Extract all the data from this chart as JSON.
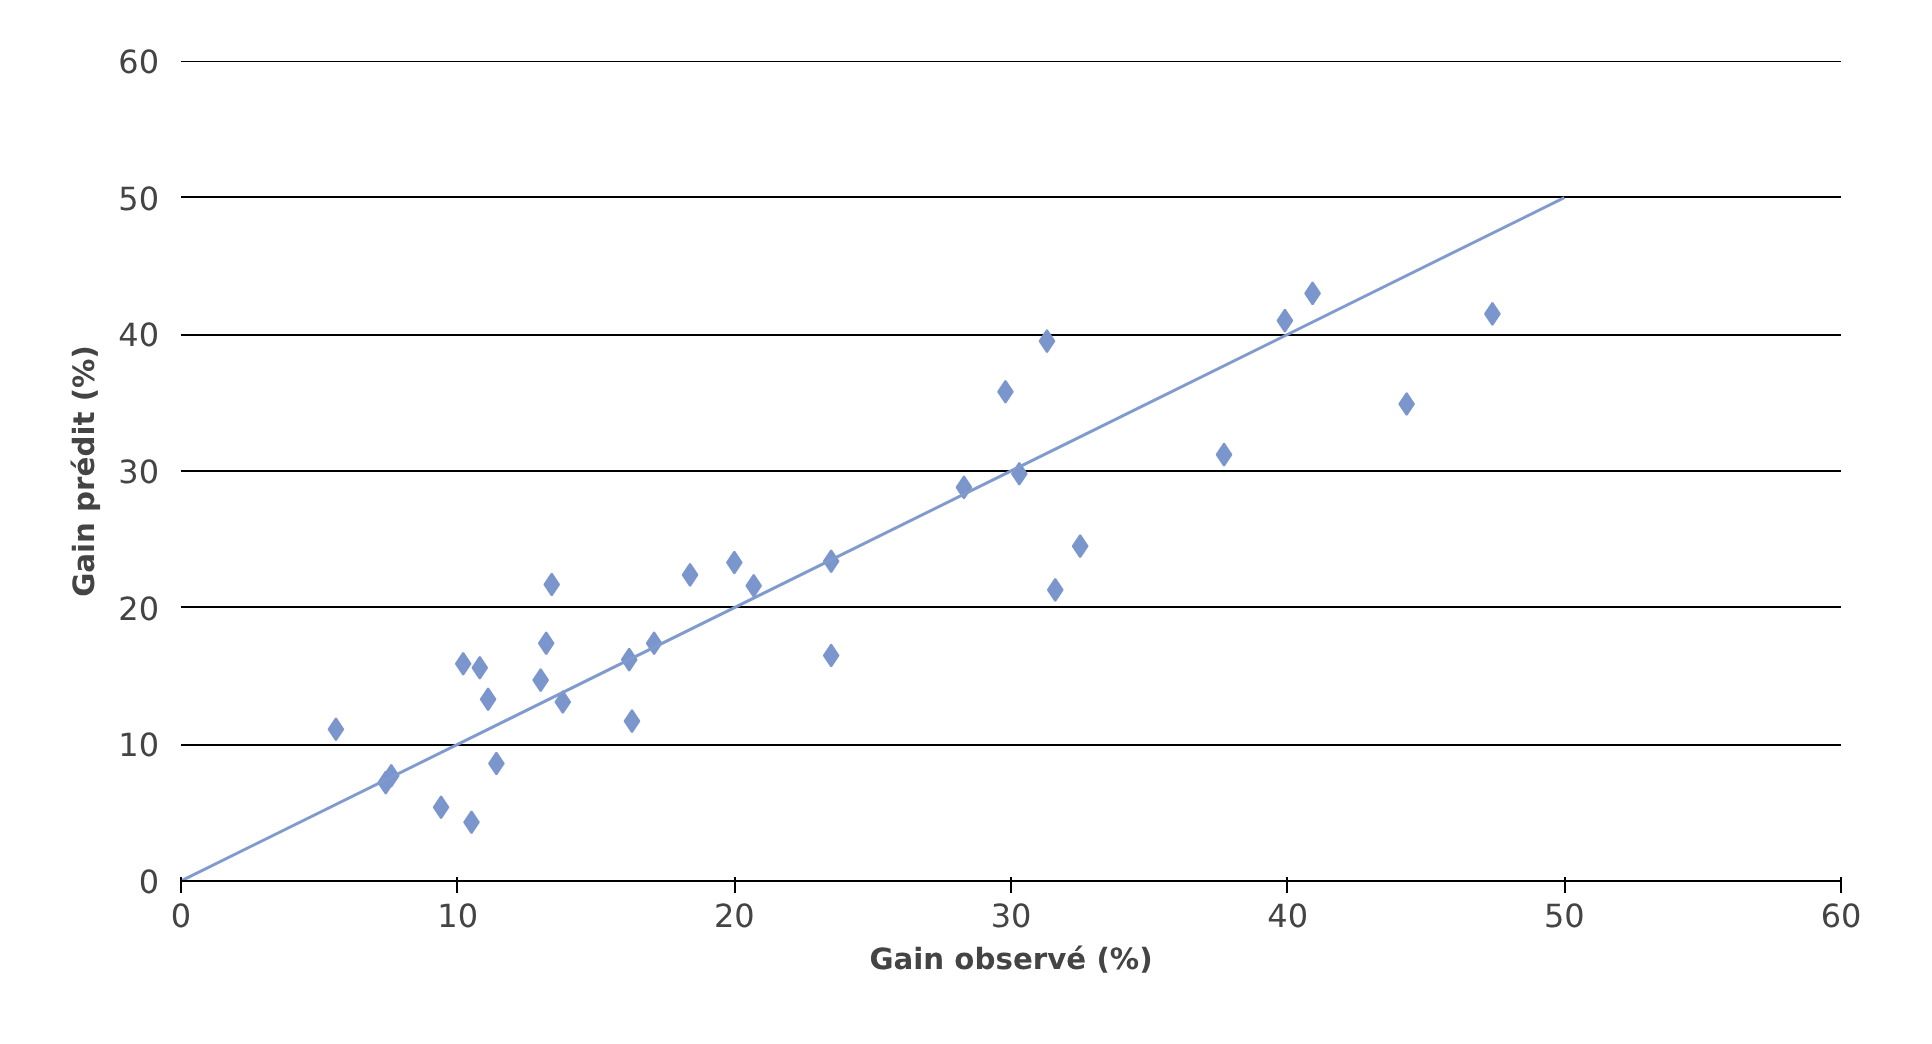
{
  "chart_data": {
    "type": "scatter",
    "xlabel": "Gain observé (%)",
    "ylabel": "Gain prédit (%)",
    "xlim": [
      0,
      60
    ],
    "ylim": [
      0,
      60
    ],
    "xticks": [
      0,
      10,
      20,
      30,
      40,
      50,
      60
    ],
    "yticks": [
      0,
      10,
      20,
      30,
      40,
      50,
      60
    ],
    "grid": "y",
    "series": [
      {
        "color": "#7b96cc",
        "marker": "diamond",
        "x": [
          5.6,
          7.4,
          7.6,
          9.4,
          10.2,
          10.5,
          10.8,
          11.1,
          11.4,
          13.0,
          13.2,
          13.4,
          13.8,
          16.2,
          16.3,
          17.1,
          18.4,
          20.0,
          20.7,
          23.5,
          23.5,
          28.3,
          29.8,
          30.3,
          31.3,
          31.6,
          32.5,
          37.7,
          39.9,
          40.9,
          44.3,
          47.4
        ],
        "values": [
          11.1,
          7.2,
          7.7,
          5.4,
          15.9,
          4.3,
          15.6,
          13.3,
          8.6,
          14.7,
          17.4,
          21.7,
          13.1,
          16.2,
          11.7,
          17.4,
          22.4,
          23.3,
          21.6,
          16.5,
          23.4,
          28.8,
          35.8,
          29.8,
          39.5,
          21.3,
          24.5,
          31.2,
          41.0,
          43.0,
          34.9,
          41.5
        ]
      },
      {
        "type": "line",
        "marker": "none",
        "color": "#7f9acc",
        "x": [
          0,
          50
        ],
        "values": [
          0,
          50
        ]
      }
    ]
  }
}
